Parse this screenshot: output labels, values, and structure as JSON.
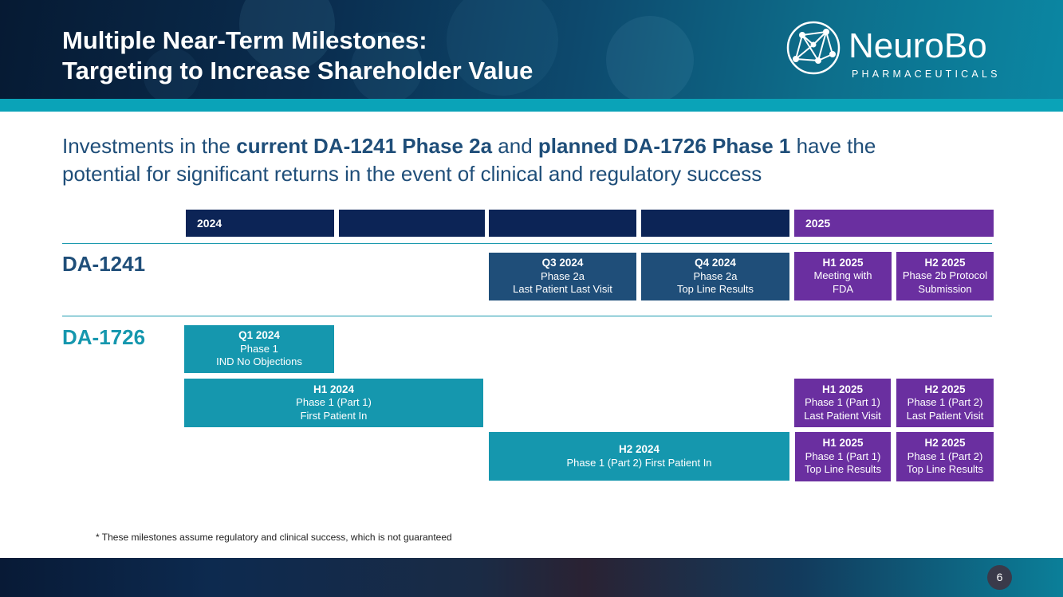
{
  "header": {
    "title_line1": "Multiple Near-Term Milestones:",
    "title_line2": "Targeting to Increase Shareholder Value",
    "logo_name": "NeuroBo",
    "logo_sub": "PHARMACEUTICALS"
  },
  "subtitle": {
    "part1": "Investments in the ",
    "bold1": "current DA-1241 Phase 2a",
    "part2": " and ",
    "bold2": "planned DA-1726 Phase 1",
    "part3": " have the potential for significant returns in the event of clinical and regulatory success"
  },
  "timeline": {
    "year1": "2024",
    "year2": "2025"
  },
  "rows": {
    "da1241": "DA-1241",
    "da1726": "DA-1726"
  },
  "milestones": {
    "m1": {
      "title": "Q3 2024",
      "line1": "Phase 2a",
      "line2": "Last Patient Last Visit"
    },
    "m2": {
      "title": "Q4 2024",
      "line1": "Phase 2a",
      "line2": "Top Line Results"
    },
    "m3": {
      "title": "H1 2025",
      "line1": "Meeting with",
      "line2": "FDA"
    },
    "m4": {
      "title": "H2 2025",
      "line1": "Phase 2b Protocol",
      "line2": "Submission"
    },
    "m5": {
      "title": "Q1 2024",
      "line1": "Phase 1",
      "line2": "IND No Objections"
    },
    "m6": {
      "title": "H1 2024",
      "line1": "Phase 1 (Part 1)",
      "line2": "First Patient In"
    },
    "m7": {
      "title": "H1 2025",
      "line1": "Phase 1 (Part 1)",
      "line2": "Last Patient Visit"
    },
    "m8": {
      "title": "H2 2025",
      "line1": "Phase 1 (Part 2)",
      "line2": "Last Patient Visit"
    },
    "m9": {
      "title": "H2 2024",
      "line1": "Phase 1 (Part 2) First Patient In"
    },
    "m10": {
      "title": "H1 2025",
      "line1": "Phase 1 (Part 1)",
      "line2": "Top Line Results"
    },
    "m11": {
      "title": "H2 2025",
      "line1": "Phase 1 (Part 2)",
      "line2": "Top Line Results"
    }
  },
  "footnote": "* These milestones assume regulatory and clinical success, which is not guaranteed",
  "page_number": "6",
  "colors": {
    "navy": "#0c2456",
    "purple": "#6a2fa0",
    "steel_blue": "#1f4e79",
    "teal": "#1597ae"
  }
}
